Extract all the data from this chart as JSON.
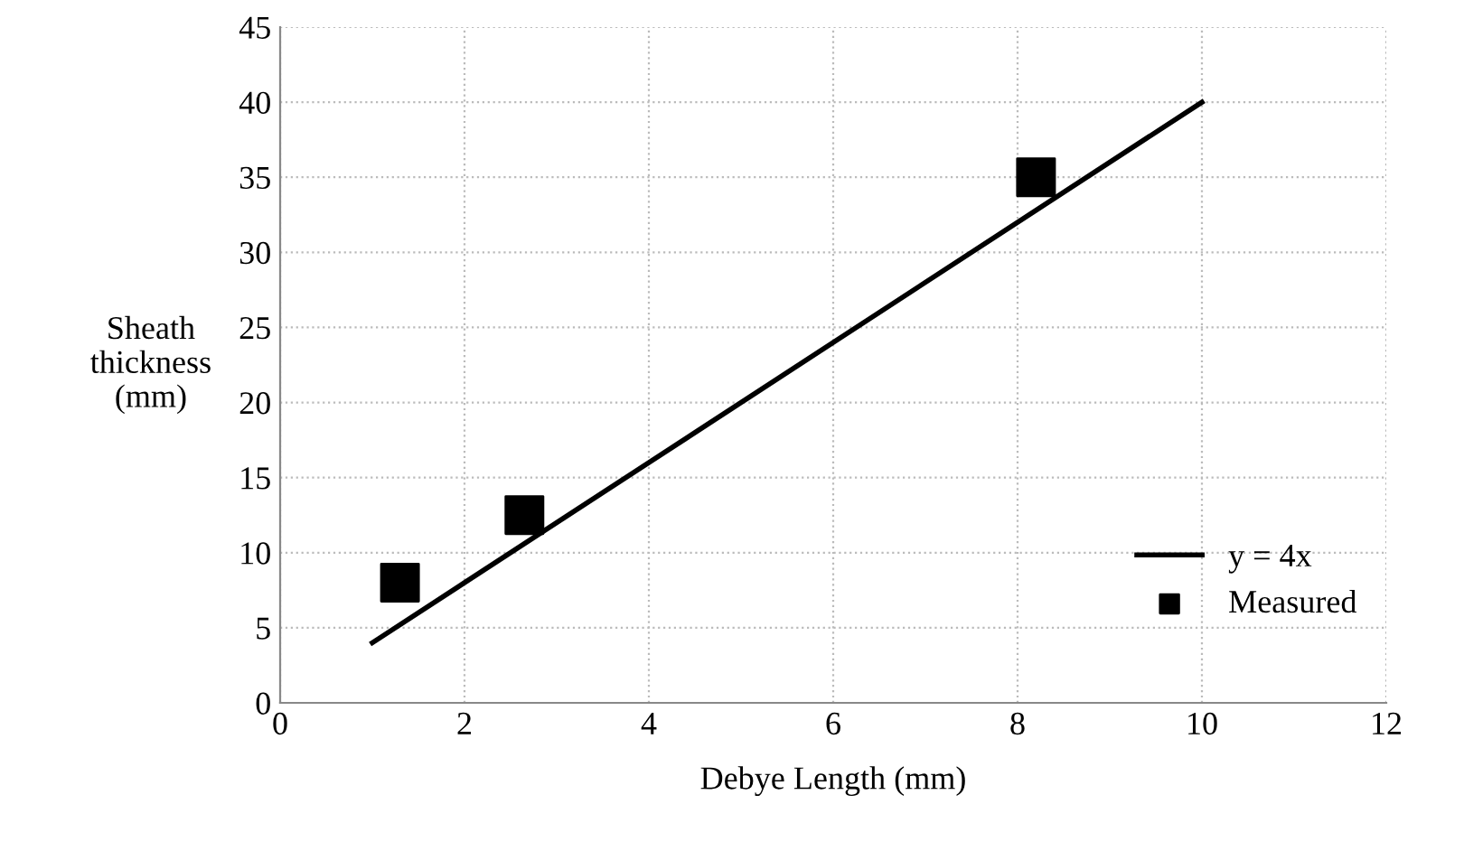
{
  "chart_data": {
    "type": "scatter",
    "xlabel": "Debye Length (mm)",
    "ylabel": "Sheath\nthickness\n(mm)",
    "xlim": [
      0,
      12
    ],
    "xticks": [
      0,
      2,
      4,
      6,
      8,
      10,
      12
    ],
    "ylim": [
      0,
      45
    ],
    "yticks": [
      0,
      5,
      10,
      15,
      20,
      25,
      30,
      35,
      40,
      45
    ],
    "grid": true,
    "legend": "bottom right",
    "series": [
      {
        "name": "y = 4x",
        "type": "line",
        "color": "#000000",
        "x": [
          1,
          10
        ],
        "values": [
          4,
          40
        ],
        "marker": "none",
        "line_style": "solid"
      },
      {
        "name": "Measured",
        "color": "#000000",
        "x": [
          1.3,
          2.65,
          8.2
        ],
        "values": [
          8,
          12.5,
          35
        ],
        "marker": "square"
      }
    ]
  }
}
